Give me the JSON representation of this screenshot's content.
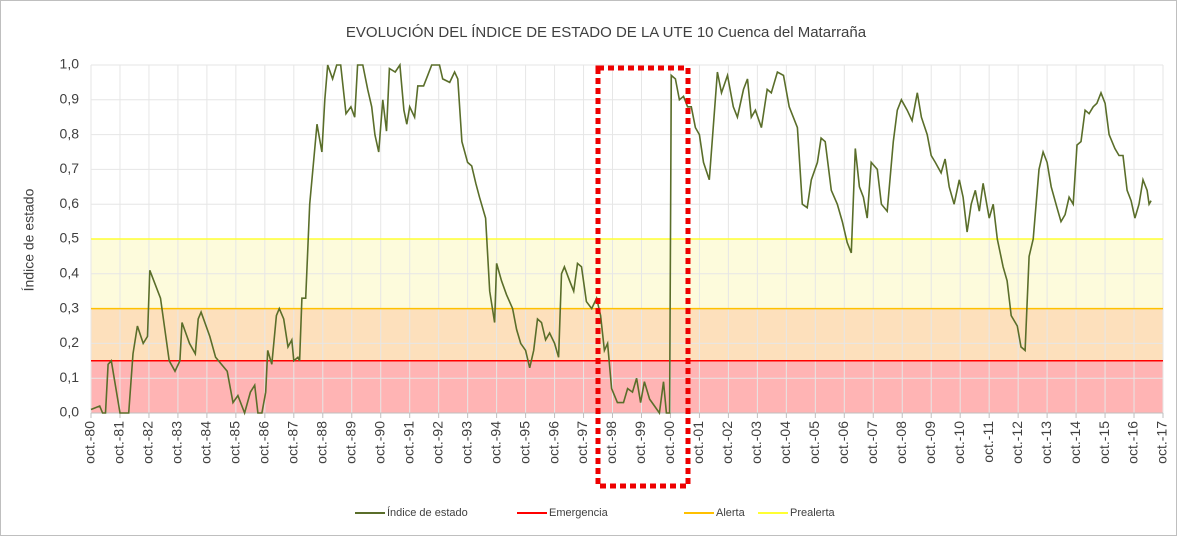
{
  "chart_data": {
    "type": "line",
    "title": "EVOLUCIÓN DEL ÍNDICE DE ESTADO DE LA UTE 10 Cuenca del Matarraña",
    "y_label": "Índice de estado",
    "xlim": [
      0,
      37
    ],
    "ylim": [
      0,
      1
    ],
    "xticks": [
      {
        "value": 0,
        "label": "oct.-80"
      },
      {
        "value": 1,
        "label": "oct.-81"
      },
      {
        "value": 2,
        "label": "oct.-82"
      },
      {
        "value": 3,
        "label": "oct.-83"
      },
      {
        "value": 4,
        "label": "oct.-84"
      },
      {
        "value": 5,
        "label": "oct.-85"
      },
      {
        "value": 6,
        "label": "oct.-86"
      },
      {
        "value": 7,
        "label": "oct.-87"
      },
      {
        "value": 8,
        "label": "oct.-88"
      },
      {
        "value": 9,
        "label": "oct.-89"
      },
      {
        "value": 10,
        "label": "oct.-90"
      },
      {
        "value": 11,
        "label": "oct.-91"
      },
      {
        "value": 12,
        "label": "oct.-92"
      },
      {
        "value": 13,
        "label": "oct.-93"
      },
      {
        "value": 14,
        "label": "oct.-94"
      },
      {
        "value": 15,
        "label": "oct.-95"
      },
      {
        "value": 16,
        "label": "oct.-96"
      },
      {
        "value": 17,
        "label": "oct.-97"
      },
      {
        "value": 18,
        "label": "oct.-98"
      },
      {
        "value": 19,
        "label": "oct.-99"
      },
      {
        "value": 20,
        "label": "oct.-00"
      },
      {
        "value": 21,
        "label": "oct.-01"
      },
      {
        "value": 22,
        "label": "oct.-02"
      },
      {
        "value": 23,
        "label": "oct.-03"
      },
      {
        "value": 24,
        "label": "oct.-04"
      },
      {
        "value": 25,
        "label": "oct.-05"
      },
      {
        "value": 26,
        "label": "oct.-06"
      },
      {
        "value": 27,
        "label": "oct.-07"
      },
      {
        "value": 28,
        "label": "oct.-08"
      },
      {
        "value": 29,
        "label": "oct.-09"
      },
      {
        "value": 30,
        "label": "oct.-10"
      },
      {
        "value": 31,
        "label": "oct.-11"
      },
      {
        "value": 32,
        "label": "oct.-12"
      },
      {
        "value": 33,
        "label": "oct.-13"
      },
      {
        "value": 34,
        "label": "oct.-14"
      },
      {
        "value": 35,
        "label": "oct.-15"
      },
      {
        "value": 36,
        "label": "oct.-16"
      },
      {
        "value": 37,
        "label": "oct.-17"
      }
    ],
    "yticks": [
      {
        "value": 0,
        "label": "0,0"
      },
      {
        "value": 0.1,
        "label": "0,1"
      },
      {
        "value": 0.2,
        "label": "0,2"
      },
      {
        "value": 0.3,
        "label": "0,3"
      },
      {
        "value": 0.4,
        "label": "0,4"
      },
      {
        "value": 0.5,
        "label": "0,5"
      },
      {
        "value": 0.6,
        "label": "0,6"
      },
      {
        "value": 0.7,
        "label": "0,7"
      },
      {
        "value": 0.8,
        "label": "0,8"
      },
      {
        "value": 0.9,
        "label": "0,9"
      },
      {
        "value": 1,
        "label": "1,0"
      }
    ],
    "grid": true,
    "series": [
      {
        "name": "Índice de estado",
        "color": "#5a6e2a",
        "x": [
          0,
          0.3,
          0.4,
          0.5,
          0.59,
          0.7,
          1.0,
          1.3,
          1.45,
          1.6,
          1.8,
          1.95,
          2.03,
          2.4,
          2.7,
          2.9,
          3.07,
          3.14,
          3.4,
          3.6,
          3.7,
          3.8,
          4.1,
          4.3,
          4.5,
          4.7,
          4.9,
          5.07,
          5.3,
          5.5,
          5.65,
          5.76,
          5.9,
          6.03,
          6.1,
          6.24,
          6.4,
          6.5,
          6.65,
          6.8,
          6.93,
          7.0,
          7.14,
          7.2,
          7.28,
          7.41,
          7.55,
          7.8,
          7.97,
          8.07,
          8.17,
          8.34,
          8.48,
          8.62,
          8.8,
          8.97,
          9.1,
          9.2,
          9.38,
          9.55,
          9.69,
          9.8,
          9.93,
          10.07,
          10.2,
          10.3,
          10.5,
          10.66,
          10.8,
          10.9,
          11.0,
          11.17,
          11.28,
          11.48,
          11.62,
          11.76,
          12.03,
          12.14,
          12.38,
          12.55,
          12.66,
          12.8,
          13.0,
          13.14,
          13.28,
          13.41,
          13.62,
          13.76,
          13.93,
          14.0,
          14.17,
          14.34,
          14.55,
          14.69,
          14.83,
          15.0,
          15.14,
          15.28,
          15.41,
          15.55,
          15.69,
          15.83,
          16.0,
          16.14,
          16.24,
          16.34,
          16.52,
          16.66,
          16.79,
          16.93,
          17.1,
          17.28,
          17.45,
          17.59,
          17.72,
          17.83,
          17.97,
          18.17,
          18.38,
          18.52,
          18.69,
          18.83,
          18.97,
          19.1,
          19.28,
          19.45,
          19.62,
          19.76,
          19.86,
          19.97,
          20.03,
          20.17,
          20.31,
          20.45,
          20.59,
          20.72,
          20.86,
          21.0,
          21.14,
          21.34,
          21.62,
          21.76,
          21.97,
          22.17,
          22.31,
          22.52,
          22.66,
          22.79,
          22.93,
          23.14,
          23.34,
          23.48,
          23.69,
          23.9,
          24.1,
          24.38,
          24.55,
          24.72,
          24.86,
          25.07,
          25.2,
          25.34,
          25.55,
          25.76,
          25.93,
          26.1,
          26.24,
          26.38,
          26.52,
          26.66,
          26.79,
          26.93,
          27.14,
          27.28,
          27.48,
          27.69,
          27.83,
          27.97,
          28.17,
          28.34,
          28.52,
          28.66,
          28.86,
          29.0,
          29.14,
          29.34,
          29.48,
          29.62,
          29.79,
          29.97,
          30.1,
          30.24,
          30.38,
          30.52,
          30.66,
          30.79,
          31.0,
          31.14,
          31.28,
          31.48,
          31.62,
          31.76,
          31.97,
          32.1,
          32.24,
          32.38,
          32.52,
          32.72,
          32.86,
          33.0,
          33.14,
          33.34,
          33.48,
          33.62,
          33.76,
          33.9,
          34.03,
          34.17,
          34.31,
          34.45,
          34.59,
          34.72,
          34.86,
          35.0,
          35.14,
          35.34,
          35.48,
          35.62,
          35.76,
          35.9,
          36.03,
          36.17,
          36.31,
          36.45,
          36.52,
          36.59
        ],
        "values": [
          0.01,
          0.02,
          0.0,
          0.0,
          0.14,
          0.15,
          0.0,
          0.0,
          0.17,
          0.25,
          0.2,
          0.22,
          0.41,
          0.33,
          0.15,
          0.12,
          0.15,
          0.26,
          0.2,
          0.17,
          0.27,
          0.29,
          0.22,
          0.16,
          0.14,
          0.12,
          0.03,
          0.05,
          0.0,
          0.06,
          0.08,
          0.0,
          0.0,
          0.06,
          0.18,
          0.14,
          0.28,
          0.3,
          0.27,
          0.19,
          0.21,
          0.15,
          0.16,
          0.15,
          0.33,
          0.33,
          0.6,
          0.83,
          0.75,
          0.9,
          1.0,
          0.96,
          1.0,
          1.0,
          0.86,
          0.88,
          0.85,
          1.0,
          1.0,
          0.93,
          0.88,
          0.8,
          0.75,
          0.9,
          0.81,
          0.99,
          0.98,
          1.0,
          0.87,
          0.83,
          0.88,
          0.85,
          0.94,
          0.94,
          0.97,
          1.0,
          1.0,
          0.96,
          0.95,
          0.98,
          0.96,
          0.78,
          0.72,
          0.71,
          0.66,
          0.62,
          0.56,
          0.35,
          0.26,
          0.43,
          0.38,
          0.34,
          0.3,
          0.24,
          0.2,
          0.18,
          0.13,
          0.18,
          0.27,
          0.26,
          0.21,
          0.23,
          0.2,
          0.16,
          0.4,
          0.42,
          0.38,
          0.35,
          0.43,
          0.42,
          0.32,
          0.3,
          0.33,
          0.28,
          0.18,
          0.2,
          0.07,
          0.03,
          0.03,
          0.07,
          0.06,
          0.1,
          0.03,
          0.09,
          0.04,
          0.02,
          0.0,
          0.09,
          0.0,
          0.0,
          0.97,
          0.96,
          0.9,
          0.91,
          0.88,
          0.88,
          0.82,
          0.8,
          0.72,
          0.67,
          0.98,
          0.92,
          0.97,
          0.88,
          0.85,
          0.93,
          0.96,
          0.85,
          0.87,
          0.82,
          0.93,
          0.92,
          0.98,
          0.97,
          0.88,
          0.82,
          0.6,
          0.59,
          0.67,
          0.72,
          0.79,
          0.78,
          0.64,
          0.6,
          0.55,
          0.49,
          0.46,
          0.76,
          0.65,
          0.62,
          0.56,
          0.72,
          0.7,
          0.6,
          0.58,
          0.78,
          0.87,
          0.9,
          0.87,
          0.84,
          0.92,
          0.85,
          0.8,
          0.74,
          0.72,
          0.69,
          0.73,
          0.65,
          0.6,
          0.67,
          0.62,
          0.52,
          0.6,
          0.64,
          0.58,
          0.66,
          0.56,
          0.6,
          0.5,
          0.42,
          0.38,
          0.28,
          0.25,
          0.19,
          0.18,
          0.45,
          0.5,
          0.7,
          0.75,
          0.72,
          0.65,
          0.59,
          0.55,
          0.57,
          0.62,
          0.6,
          0.77,
          0.78,
          0.87,
          0.86,
          0.88,
          0.89,
          0.92,
          0.89,
          0.8,
          0.76,
          0.74,
          0.74,
          0.64,
          0.61,
          0.56,
          0.6,
          0.67,
          0.64,
          0.6,
          0.61
        ]
      }
    ],
    "thresholds": [
      {
        "name": "Emergencia",
        "color": "#ff0000",
        "band_color": "#ffb4b4",
        "value": 0.15
      },
      {
        "name": "Alerta",
        "color": "#ffc000",
        "band_color": "#fde0bc",
        "value": 0.3
      },
      {
        "name": "Prealerta",
        "color": "#ffff33",
        "band_color": "#fdfbdc",
        "value": 0.5
      }
    ]
  }
}
